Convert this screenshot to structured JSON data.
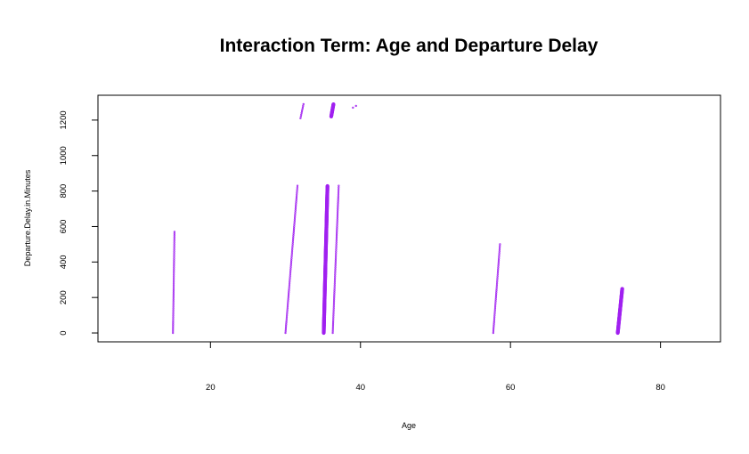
{
  "chart_data": {
    "type": "scatter",
    "title": "Interaction Term: Age and Departure Delay",
    "xlabel": "Age",
    "ylabel": "Departure.Delay.in.Minutes",
    "xlim": [
      5,
      88
    ],
    "ylim": [
      -50,
      1340
    ],
    "xticks": [
      20,
      40,
      60,
      80
    ],
    "yticks": [
      0,
      200,
      400,
      600,
      800,
      1000,
      1200
    ],
    "grid": false,
    "legend": "none",
    "point_color": "#a020f0",
    "groups": [
      {
        "age_start": 15.0,
        "age_end": 15.2,
        "delay_min": 0,
        "delay_max": 570,
        "density": "sparse"
      },
      {
        "age_start": 30.0,
        "age_end": 31.6,
        "delay_min": 0,
        "delay_max": 830,
        "density": "sparse"
      },
      {
        "age_start": 32.0,
        "age_end": 32.4,
        "delay_min": 1210,
        "delay_max": 1290,
        "density": "sparse"
      },
      {
        "age_start": 35.1,
        "age_end": 35.6,
        "delay_min": 0,
        "delay_max": 830,
        "density": "dense"
      },
      {
        "age_start": 36.1,
        "age_end": 36.4,
        "delay_min": 1220,
        "delay_max": 1290,
        "density": "dense"
      },
      {
        "age_start": 36.3,
        "age_end": 37.1,
        "delay_min": 0,
        "delay_max": 830,
        "density": "sparse"
      },
      {
        "age_start": 39.0,
        "age_end": 39.6,
        "delay_min": 1270,
        "delay_max": 1285,
        "density": "sparse"
      },
      {
        "age_start": 57.7,
        "age_end": 58.6,
        "delay_min": 0,
        "delay_max": 500,
        "density": "sparse"
      },
      {
        "age_start": 74.3,
        "age_end": 74.9,
        "delay_min": 0,
        "delay_max": 250,
        "density": "dense"
      }
    ]
  }
}
